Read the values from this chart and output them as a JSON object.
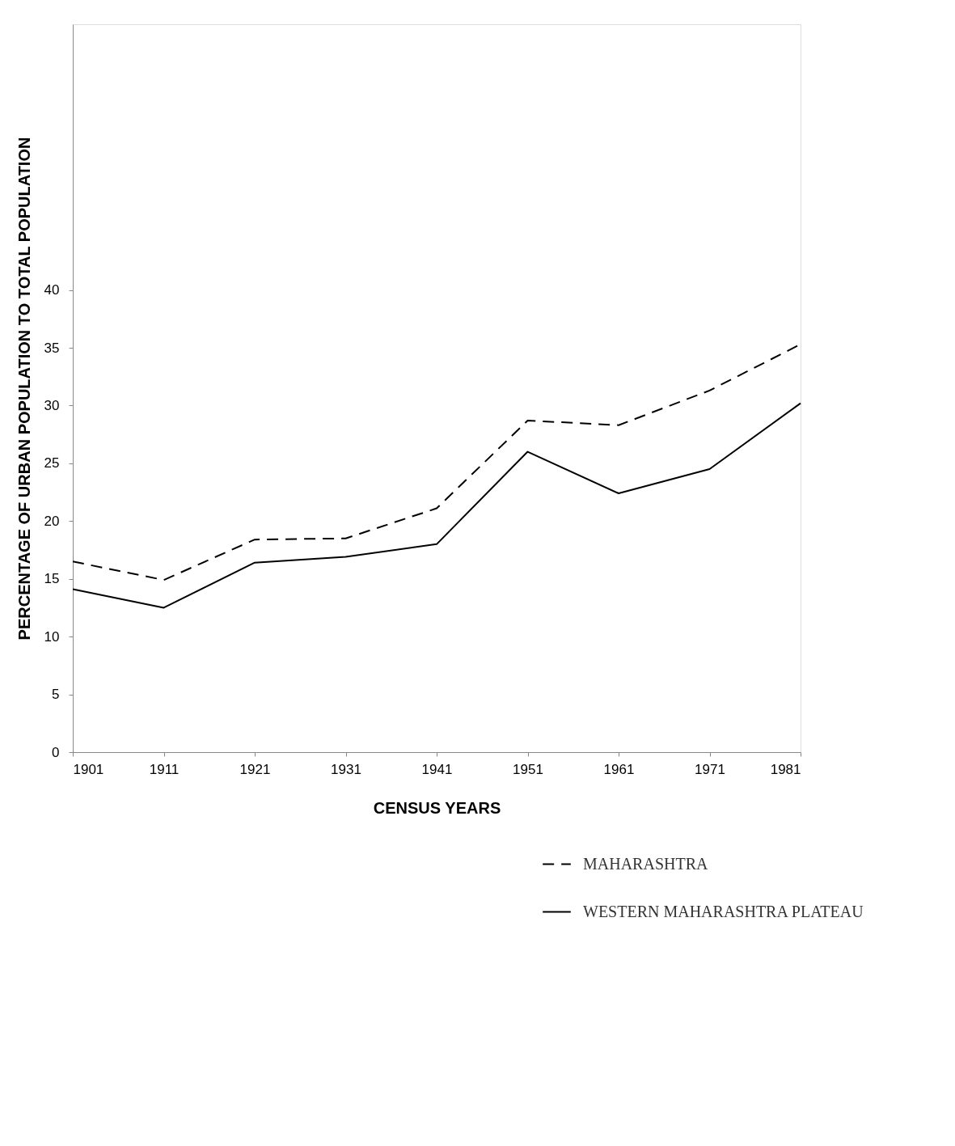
{
  "chart_data": {
    "type": "line",
    "xlabel": "CENSUS YEARS",
    "ylabel": "PERCENTAGE OF URBAN POPULATION TO TOTAL POPULATION",
    "x": [
      1901,
      1911,
      1921,
      1931,
      1941,
      1951,
      1961,
      1971,
      1981
    ],
    "xlim": [
      1901,
      1981
    ],
    "xticks": [
      1901,
      1911,
      1921,
      1931,
      1941,
      1951,
      1961,
      1971,
      1981
    ],
    "ylim": [
      0,
      63
    ],
    "yticks": [
      0,
      5,
      10,
      15,
      20,
      25,
      30,
      35,
      40
    ],
    "grid": false,
    "legend": "bottom right",
    "marker": "none",
    "series": [
      {
        "name": "MAHARASHTRA",
        "color": "#000000",
        "line_style": "dashed",
        "values": [
          16.5,
          14.9,
          18.4,
          18.5,
          21.1,
          28.7,
          28.3,
          31.3,
          35.3
        ]
      },
      {
        "name": "WESTERN MAHARASHTRA PLATEAU",
        "color": "#000000",
        "line_style": "solid",
        "values": [
          14.1,
          12.5,
          16.4,
          16.9,
          18.0,
          26.0,
          22.4,
          24.5,
          30.2
        ]
      }
    ]
  }
}
